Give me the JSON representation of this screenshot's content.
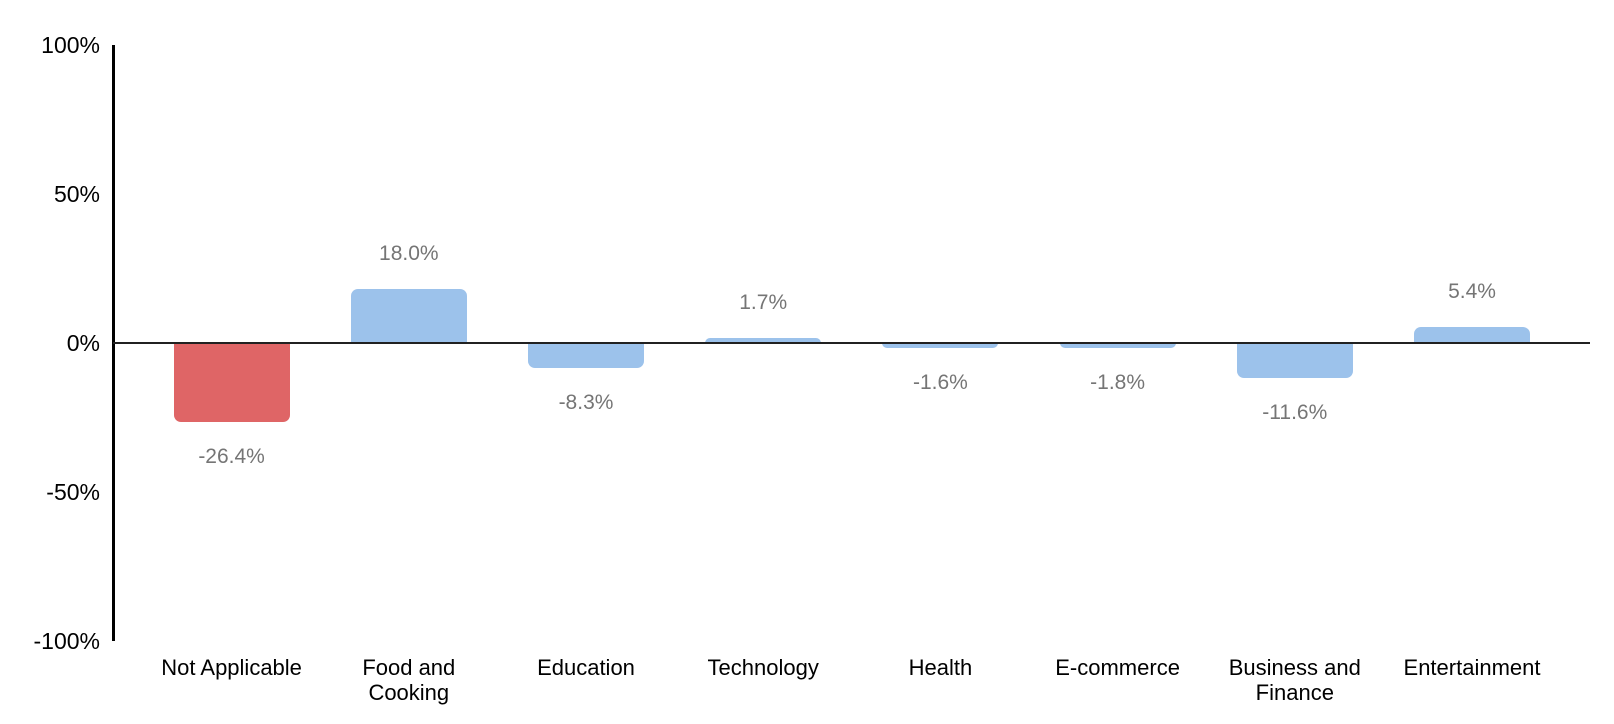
{
  "chart_data": {
    "type": "bar",
    "title": "",
    "xlabel": "",
    "ylabel": "",
    "categories": [
      "Not Applicable",
      "Food and Cooking",
      "Education",
      "Technology",
      "Health",
      "E-commerce",
      "Business and Finance",
      "Entertainment"
    ],
    "category_display": [
      "Not Applicable",
      "Food and\nCooking",
      "Education",
      "Technology",
      "Health",
      "E-commerce",
      "Business and\nFinance",
      "Entertainment"
    ],
    "values": [
      -26.4,
      18.0,
      -8.3,
      1.7,
      -1.6,
      -1.8,
      -11.6,
      5.4
    ],
    "value_labels": [
      "-26.4%",
      "18.0%",
      "-8.3%",
      "1.7%",
      "-1.6%",
      "-1.8%",
      "-11.6%",
      "5.4%"
    ],
    "bar_colors": [
      "#DF6566",
      "#9CC2EB",
      "#9CC2EB",
      "#9CC2EB",
      "#9CC2EB",
      "#9CC2EB",
      "#9CC2EB",
      "#9CC2EB"
    ],
    "ylim": [
      -100,
      100
    ],
    "yticks": [
      {
        "label": "100%",
        "value": 100
      },
      {
        "label": "50%",
        "value": 50
      },
      {
        "label": "0%",
        "value": 0
      },
      {
        "label": "-50%",
        "value": -50
      },
      {
        "label": "-100%",
        "value": -100
      }
    ],
    "grid": false,
    "legend": false,
    "colors": {
      "highlight_red": "#DF6566",
      "default_blue": "#9CC2EB",
      "value_label_gray": "#757575",
      "axis_black": "#000000"
    }
  }
}
